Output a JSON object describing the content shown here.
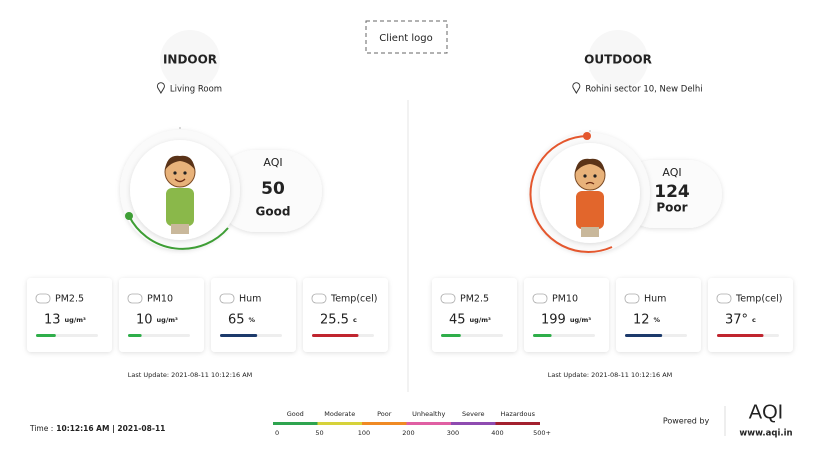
{
  "header": {
    "logo": "Client logo"
  },
  "panels": [
    {
      "title": "INDOOR",
      "location": "Living Room",
      "aqi_label": "AQI",
      "aqi": 50,
      "status": "Good",
      "color": "#3e9e35",
      "metrics": [
        {
          "name": "PM2.5",
          "value": 13,
          "unit": "ug/m³",
          "color": "#2fae4a"
        },
        {
          "name": "PM10",
          "value": 10,
          "unit": "ug/m³",
          "color": "#2fae4a"
        },
        {
          "name": "Hum",
          "value": 65,
          "unit": "%",
          "color": "#1c3a6b"
        },
        {
          "name": "Temp(cel)",
          "value": 25.5,
          "unit": "c",
          "color": "#c0252f"
        }
      ],
      "last_update": "Last Update: 2021-08-11 10:12:16 AM"
    },
    {
      "title": "OUTDOOR",
      "location": "Rohini sector 10, New Delhi",
      "aqi_label": "AQI",
      "aqi": 124,
      "status": "Poor",
      "color": "#e4572e",
      "metrics": [
        {
          "name": "PM2.5",
          "value": 45,
          "unit": "ug/m³",
          "color": "#2fae4a"
        },
        {
          "name": "PM10",
          "value": 199,
          "unit": "ug/m³",
          "color": "#2fae4a"
        },
        {
          "name": "Hum",
          "value": 12,
          "unit": "%",
          "color": "#1c3a6b"
        },
        {
          "name": "Temp(cel)",
          "value": "37°",
          "unit": "c",
          "color": "#c0252f"
        }
      ],
      "last_update": "Last Update: 2021-08-11 10:12:16 AM"
    }
  ],
  "footer": {
    "time_label": "Time :",
    "time": "10:12:16 AM | 2021-08-11",
    "scale": {
      "labels": [
        "Good",
        "Moderate",
        "Poor",
        "Unhealthy",
        "Severe",
        "Hazardous"
      ],
      "colors": [
        "#2ea44f",
        "#d6d23a",
        "#f08a24",
        "#e05fa3",
        "#8e4bb0",
        "#a3202e"
      ],
      "ticks": [
        0,
        50,
        100,
        200,
        300,
        400,
        "500+"
      ]
    },
    "powered_by": "Powered by",
    "brand": "AQI",
    "url": "www.aqi.in"
  }
}
